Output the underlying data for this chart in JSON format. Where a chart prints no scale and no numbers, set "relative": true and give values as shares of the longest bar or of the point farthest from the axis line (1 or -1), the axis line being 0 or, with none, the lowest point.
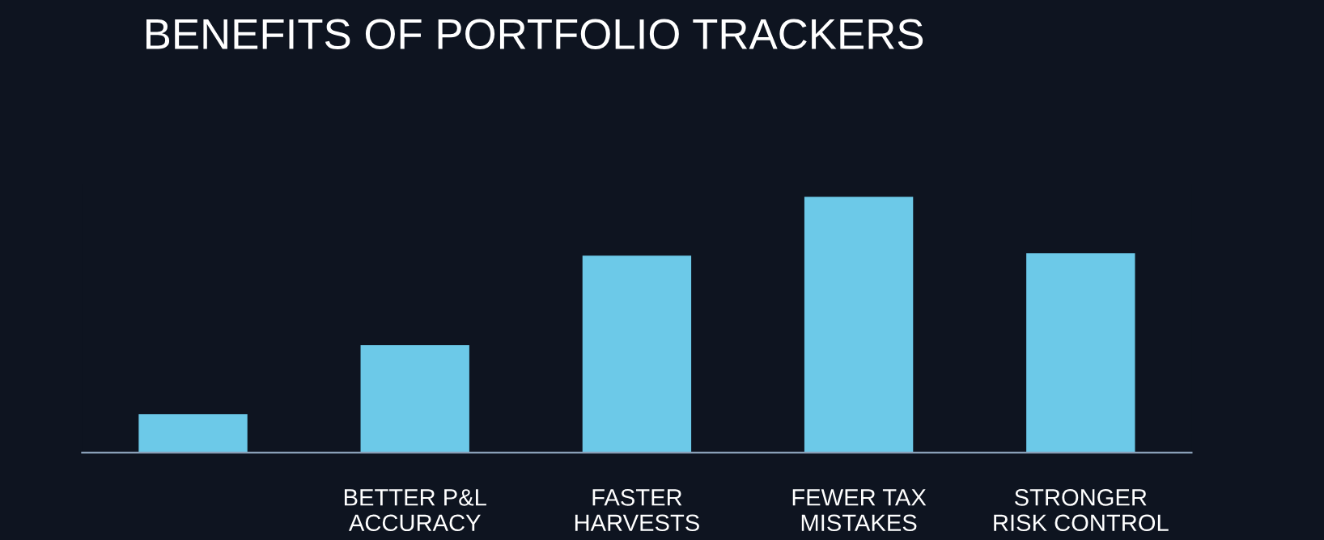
{
  "chart_data": {
    "type": "bar",
    "title": "BENEFITS OF PORTFOLIO TRACKERS",
    "categories": [
      null,
      "BETTER P&L\nACCURACY",
      "FASTER\nHARVESTS",
      "FEWER TAX\nMISTAKES",
      "STRONGER\nRISK CONTROL"
    ],
    "values": [
      0.15,
      0.42,
      0.77,
      1,
      0.78
    ],
    "color": "#6cc9e8",
    "relative": true
  }
}
